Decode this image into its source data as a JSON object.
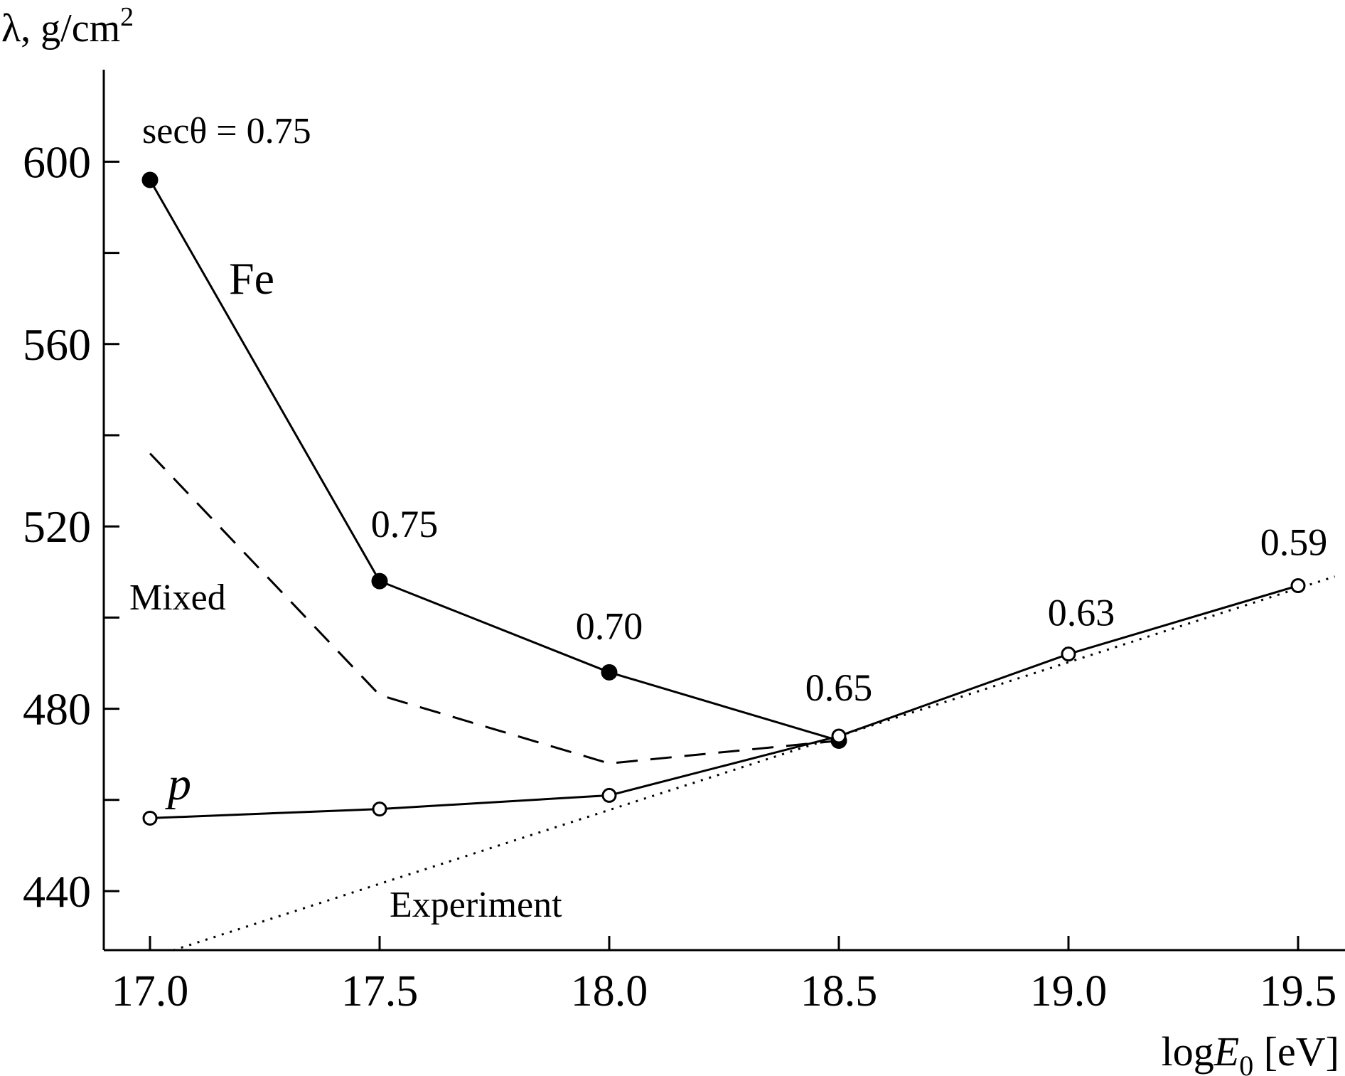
{
  "chart_data": {
    "type": "line",
    "title": "",
    "ylabel": "λ, g/cm",
    "ylabel_sup": "2",
    "xlabel_prefix": "log",
    "xlabel_var": "E",
    "xlabel_sub": "0",
    "xlabel_suffix": " [eV]",
    "xlim": [
      16.9,
      19.6
    ],
    "ylim": [
      427,
      620
    ],
    "x_ticks": [
      17.0,
      17.5,
      18.0,
      18.5,
      19.0,
      19.5
    ],
    "x_tick_labels": [
      "17.0",
      "17.5",
      "18.0",
      "18.5",
      "19.0",
      "19.5"
    ],
    "y_major_ticks": [
      440,
      480,
      520,
      560,
      600
    ],
    "y_tick_labels": [
      "440",
      "480",
      "520",
      "560",
      "600"
    ],
    "y_minor_ticks": [
      460,
      500,
      540,
      580
    ],
    "series": [
      {
        "name": "Fe",
        "style": "solid",
        "marker": "filled",
        "x": [
          17.0,
          17.5,
          18.0,
          18.5
        ],
        "y": [
          596,
          508,
          488,
          473
        ]
      },
      {
        "name": "p",
        "style": "solid",
        "marker": "open",
        "x": [
          17.0,
          17.5,
          18.0,
          18.5,
          19.0,
          19.5
        ],
        "y": [
          456,
          458,
          461,
          474,
          492,
          507
        ]
      },
      {
        "name": "Mixed",
        "style": "dashed",
        "marker": "none",
        "x": [
          17.0,
          17.5,
          18.0,
          18.5
        ],
        "y": [
          536,
          483,
          468,
          473
        ]
      },
      {
        "name": "Experiment",
        "style": "dotted",
        "marker": "none",
        "x": [
          17.05,
          19.58
        ],
        "y": [
          427,
          509
        ]
      }
    ],
    "annotations": [
      {
        "text": "secθ = 0.75",
        "x": 17.0,
        "y": 596
      },
      {
        "text": "0.75",
        "x": 17.5,
        "y": 508
      },
      {
        "text": "0.70",
        "x": 18.0,
        "y": 488
      },
      {
        "text": "0.65",
        "x": 18.5,
        "y": 474
      },
      {
        "text": "0.63",
        "x": 19.0,
        "y": 492
      },
      {
        "text": "0.59",
        "x": 19.5,
        "y": 507
      }
    ]
  }
}
